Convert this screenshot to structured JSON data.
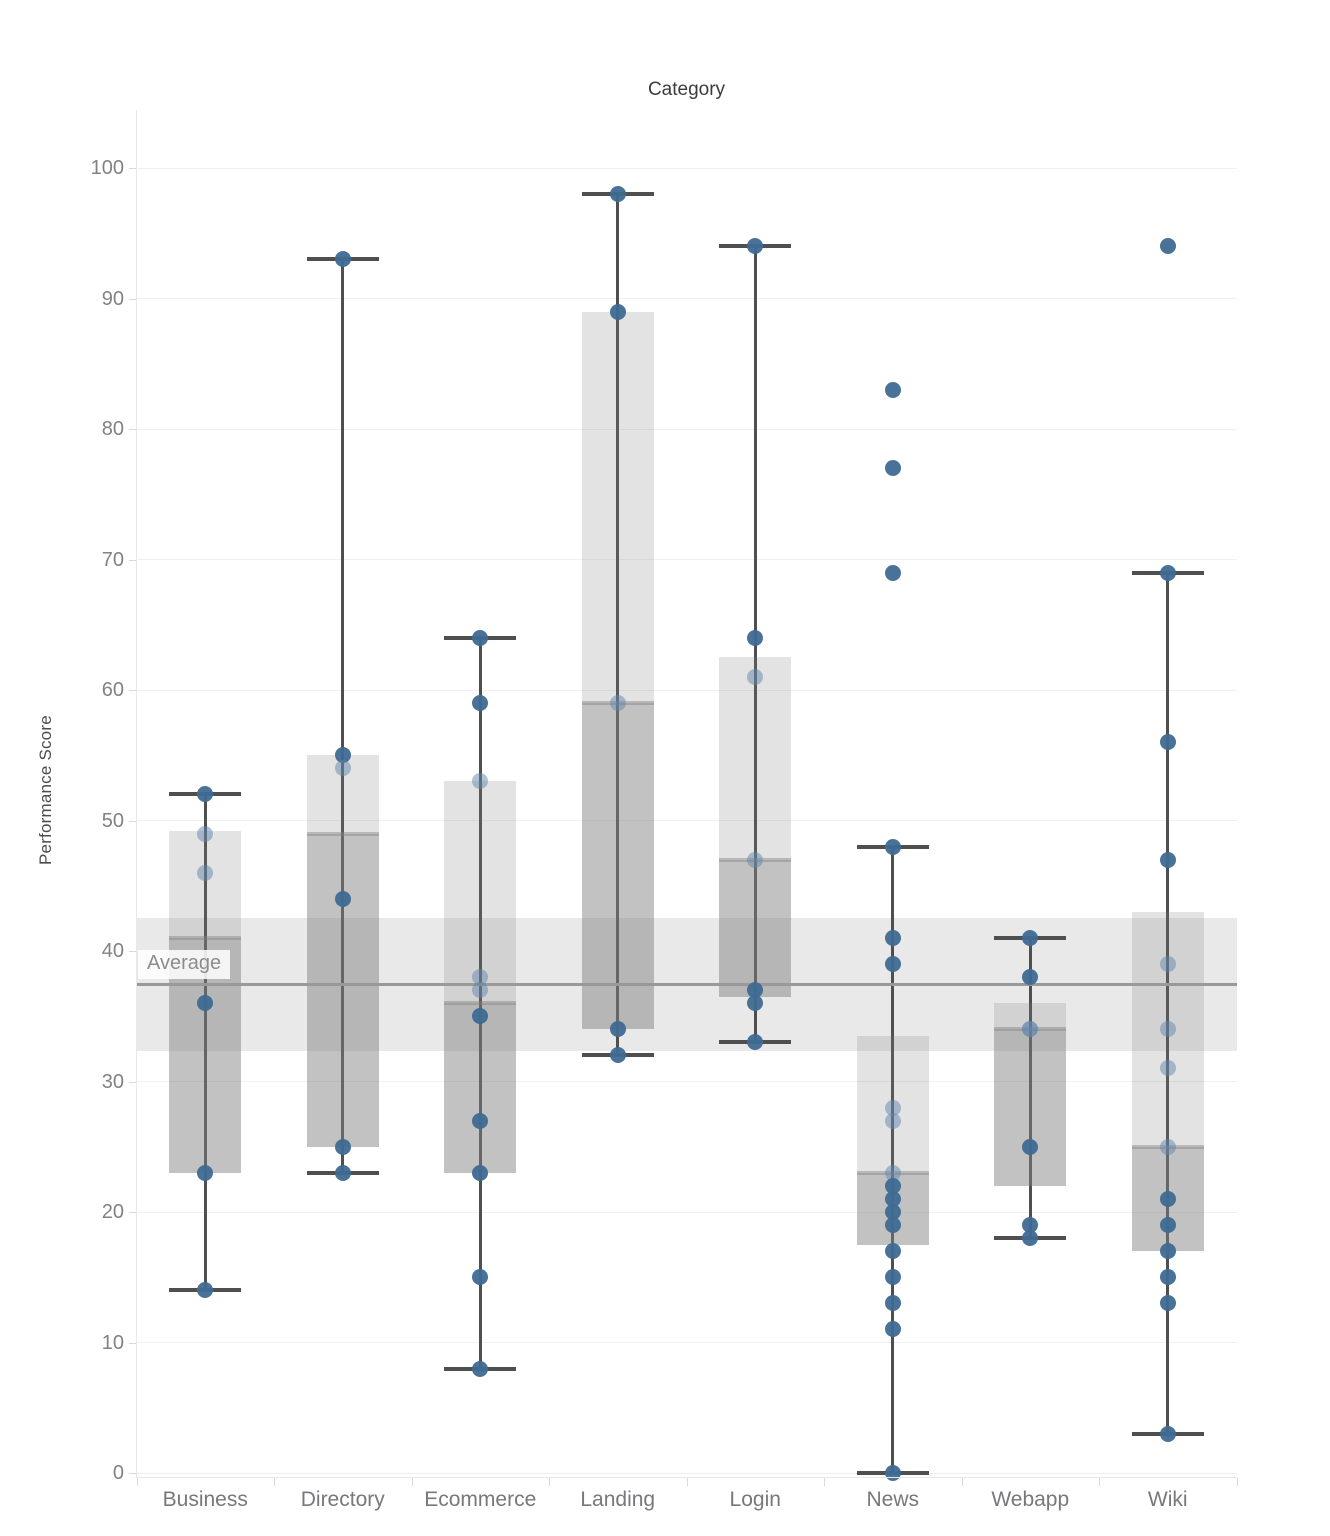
{
  "chart_data": {
    "type": "box",
    "title": "Category",
    "ylabel": "Performance Score",
    "ylim": [
      0,
      100
    ],
    "yticks": [
      0,
      10,
      20,
      30,
      40,
      50,
      60,
      70,
      80,
      90,
      100
    ],
    "grid": true,
    "legend": "none",
    "categories": [
      "Business",
      "Directory",
      "Ecommerce",
      "Landing",
      "Login",
      "News",
      "Webapp",
      "Wiki"
    ],
    "reference_line": {
      "label": "Average",
      "value": 37.4
    },
    "reference_band": {
      "from": 32.3,
      "to": 42.5
    },
    "series": [
      {
        "category": "Business",
        "whisker_low": 14,
        "q1": 23,
        "median": 41,
        "q3": 49.2,
        "whisker_high": 52,
        "points": [
          {
            "v": 52,
            "light": false
          },
          {
            "v": 49,
            "light": true
          },
          {
            "v": 46,
            "light": true
          },
          {
            "v": 36,
            "light": false
          },
          {
            "v": 23,
            "light": false
          },
          {
            "v": 14,
            "light": false
          }
        ]
      },
      {
        "category": "Directory",
        "whisker_low": 23,
        "q1": 25,
        "median": 49,
        "q3": 55,
        "whisker_high": 93,
        "points": [
          {
            "v": 93,
            "light": false
          },
          {
            "v": 55,
            "light": false
          },
          {
            "v": 54,
            "light": true
          },
          {
            "v": 44,
            "light": false
          },
          {
            "v": 25,
            "light": false
          },
          {
            "v": 23,
            "light": false
          }
        ]
      },
      {
        "category": "Ecommerce",
        "whisker_low": 8,
        "q1": 23,
        "median": 36,
        "q3": 53,
        "whisker_high": 64,
        "points": [
          {
            "v": 64,
            "light": false
          },
          {
            "v": 59,
            "light": false
          },
          {
            "v": 53,
            "light": true
          },
          {
            "v": 38,
            "light": true
          },
          {
            "v": 37,
            "light": true
          },
          {
            "v": 35,
            "light": false
          },
          {
            "v": 27,
            "light": false
          },
          {
            "v": 23,
            "light": false
          },
          {
            "v": 15,
            "light": false
          },
          {
            "v": 8,
            "light": false
          }
        ]
      },
      {
        "category": "Landing",
        "whisker_low": 32,
        "q1": 34,
        "median": 59,
        "q3": 89,
        "whisker_high": 98,
        "points": [
          {
            "v": 98,
            "light": false
          },
          {
            "v": 89,
            "light": false
          },
          {
            "v": 59,
            "light": true
          },
          {
            "v": 34,
            "light": false
          },
          {
            "v": 32,
            "light": false
          }
        ]
      },
      {
        "category": "Login",
        "whisker_low": 33,
        "q1": 36.5,
        "median": 47,
        "q3": 62.5,
        "whisker_high": 94,
        "points": [
          {
            "v": 94,
            "light": false
          },
          {
            "v": 64,
            "light": false
          },
          {
            "v": 61,
            "light": true
          },
          {
            "v": 47,
            "light": true
          },
          {
            "v": 37,
            "light": false
          },
          {
            "v": 36,
            "light": false
          },
          {
            "v": 33,
            "light": false
          }
        ]
      },
      {
        "category": "News",
        "whisker_low": 0,
        "q1": 17.5,
        "median": 23,
        "q3": 33.5,
        "whisker_high": 48,
        "points": [
          {
            "v": 83,
            "light": false
          },
          {
            "v": 77,
            "light": false
          },
          {
            "v": 69,
            "light": false
          },
          {
            "v": 48,
            "light": false
          },
          {
            "v": 41,
            "light": false
          },
          {
            "v": 39,
            "light": false
          },
          {
            "v": 28,
            "light": true
          },
          {
            "v": 27,
            "light": true
          },
          {
            "v": 23,
            "light": true
          },
          {
            "v": 22,
            "light": false
          },
          {
            "v": 21,
            "light": false
          },
          {
            "v": 20,
            "light": false
          },
          {
            "v": 19,
            "light": false
          },
          {
            "v": 17,
            "light": false
          },
          {
            "v": 15,
            "light": false
          },
          {
            "v": 13,
            "light": false
          },
          {
            "v": 11,
            "light": false
          },
          {
            "v": 0,
            "light": false
          }
        ]
      },
      {
        "category": "Webapp",
        "whisker_low": 18,
        "q1": 22,
        "median": 34,
        "q3": 36,
        "whisker_high": 41,
        "points": [
          {
            "v": 41,
            "light": false
          },
          {
            "v": 38,
            "light": false
          },
          {
            "v": 34,
            "light": true
          },
          {
            "v": 34,
            "light": true
          },
          {
            "v": 25,
            "light": false
          },
          {
            "v": 19,
            "light": false
          },
          {
            "v": 18,
            "light": false
          }
        ]
      },
      {
        "category": "Wiki",
        "whisker_low": 3,
        "q1": 17,
        "median": 25,
        "q3": 43,
        "whisker_high": 69,
        "points": [
          {
            "v": 94,
            "light": false
          },
          {
            "v": 69,
            "light": false
          },
          {
            "v": 56,
            "light": false
          },
          {
            "v": 47,
            "light": false
          },
          {
            "v": 39,
            "light": true
          },
          {
            "v": 34,
            "light": true
          },
          {
            "v": 31,
            "light": true
          },
          {
            "v": 25,
            "light": true
          },
          {
            "v": 21,
            "light": false
          },
          {
            "v": 19,
            "light": false
          },
          {
            "v": 17,
            "light": false
          },
          {
            "v": 15,
            "light": false
          },
          {
            "v": 13,
            "light": false
          },
          {
            "v": 3,
            "light": false
          }
        ]
      }
    ],
    "colors": {
      "point_dark": "rgba(63,106,148,0.95)",
      "point_light": "rgba(98,134,172,0.5)",
      "box_upper_fill": "rgba(127,127,127,0.22)",
      "box_lower_fill": "rgba(127,127,127,0.48)",
      "median_line": "rgba(130,130,130,0.45)",
      "whisker": "#4f4f4f",
      "reference_band": "#e9e9e9",
      "reference_line": "#999999",
      "gridline": "#f0f0f0"
    }
  }
}
